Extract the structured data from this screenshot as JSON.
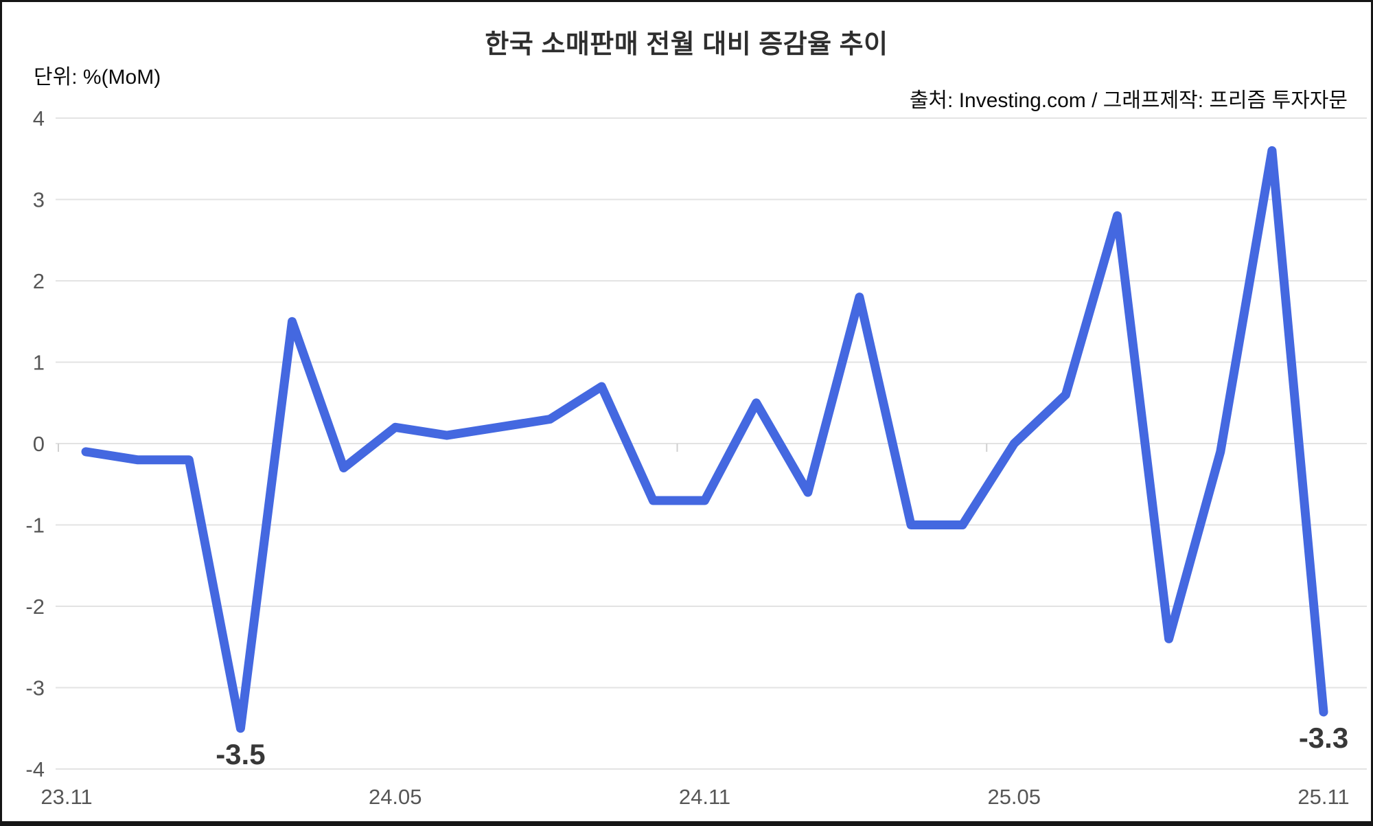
{
  "title": "한국 소매판매 전월 대비 증감율 추이",
  "unit_label": "단위: %(MoM)",
  "source_label": "출처: Investing.com / 그래프제작: 프리즘 투자자문",
  "colors": {
    "line": "#4468E0",
    "grid": "#e3e3e3",
    "tick": "#d0d0d0",
    "axis_text": "#565656",
    "title_text": "#2e2e2e",
    "annotation_text": "#383838",
    "background": "#ffffff",
    "border": "#161616"
  },
  "chart_data": {
    "type": "line",
    "x": [
      "23.11",
      "23.12",
      "24.01",
      "24.02",
      "24.03",
      "24.04",
      "24.05",
      "24.06",
      "24.07",
      "24.08",
      "24.09",
      "24.10",
      "24.11",
      "24.12",
      "25.01",
      "25.02",
      "25.03",
      "25.04",
      "25.05",
      "25.06",
      "25.07",
      "25.08",
      "25.09",
      "25.10",
      "25.11"
    ],
    "values": [
      -0.1,
      -0.2,
      -0.2,
      -3.5,
      1.5,
      -0.3,
      0.2,
      0.1,
      0.2,
      0.3,
      0.7,
      -0.7,
      -0.7,
      0.5,
      -0.6,
      1.8,
      -1.0,
      -1.0,
      0.0,
      0.6,
      2.8,
      -2.4,
      -0.1,
      3.6,
      -3.3
    ],
    "title": "한국 소매판매 전월 대비 증감율 추이",
    "xlabel": "",
    "ylabel": "%(MoM)",
    "ylim": [
      -4,
      4
    ],
    "yticks": [
      4,
      3,
      2,
      1,
      0,
      -1,
      -2,
      -3,
      -4
    ],
    "xtick_labels": [
      "23.11",
      "24.05",
      "24.11",
      "25.05",
      "25.11"
    ],
    "xtick_indices": [
      0,
      6,
      12,
      18,
      24
    ],
    "grid": true,
    "legend_position": "none",
    "annotations": [
      {
        "index": 3,
        "value": -3.5,
        "text": "-3.5"
      },
      {
        "index": 24,
        "value": -3.3,
        "text": "-3.3"
      }
    ]
  }
}
